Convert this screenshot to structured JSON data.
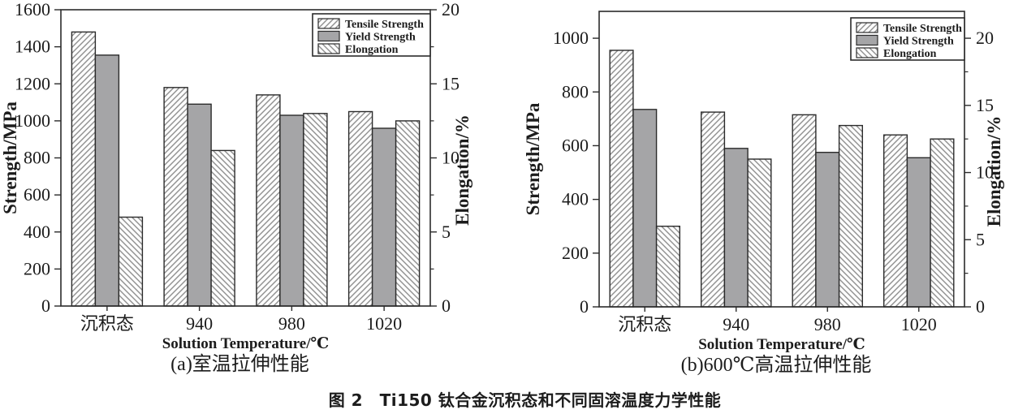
{
  "figure": {
    "main_caption": "图 2　Ti150 钛合金沉积态和不同固溶温度力学性能"
  },
  "colors": {
    "yield_fill": "#a5a5a7",
    "hatch_line": "#8f8f8f",
    "bar_stroke": "#2b2b2b",
    "axis": "#2b2b2b",
    "text": "#1c1c1c",
    "background": "#ffffff"
  },
  "chart_data": [
    {
      "type": "bar",
      "panel": "a",
      "caption": "(a)室温拉伸性能",
      "xlabel": "Solution Temperature/℃",
      "ylabel_left": "Strength/MPa",
      "ylabel_right": "Elongation/%",
      "categories": [
        "沉积态",
        "940",
        "980",
        "1020"
      ],
      "left_axis": {
        "range": [
          0,
          1600
        ],
        "ticks": [
          0,
          200,
          400,
          600,
          800,
          1000,
          1200,
          1400,
          1600
        ]
      },
      "right_axis": {
        "range": [
          0,
          20
        ],
        "ticks": [
          0,
          5,
          10,
          15,
          20
        ],
        "minor_step": 2.5
      },
      "grid": false,
      "legend": {
        "position": "top-right",
        "entries": [
          "Tensile Strength",
          "Yield Strength",
          "Elongation"
        ]
      },
      "series": [
        {
          "name": "Tensile Strength",
          "axis": "left",
          "pattern": "hatch-up",
          "values": [
            1480,
            1180,
            1140,
            1050
          ]
        },
        {
          "name": "Yield Strength",
          "axis": "left",
          "pattern": "solid",
          "values": [
            1355,
            1090,
            1030,
            960
          ]
        },
        {
          "name": "Elongation",
          "axis": "right",
          "pattern": "hatch-down",
          "values": [
            6.0,
            10.5,
            13.0,
            12.5
          ]
        }
      ]
    },
    {
      "type": "bar",
      "panel": "b",
      "caption": "(b)600℃高温拉伸性能",
      "xlabel": "Solution Temperature/℃",
      "ylabel_left": "Strength/MPa",
      "ylabel_right": "Elongation/%",
      "categories": [
        "沉积态",
        "940",
        "980",
        "1020"
      ],
      "left_axis": {
        "range": [
          0,
          1100
        ],
        "ticks": [
          0,
          200,
          400,
          600,
          800,
          1000
        ]
      },
      "right_axis": {
        "range": [
          0,
          22
        ],
        "ticks": [
          0,
          5,
          10,
          15,
          20
        ],
        "minor_step": 2.5
      },
      "grid": false,
      "legend": {
        "position": "top-right",
        "entries": [
          "Tensile Strength",
          "Yield Strength",
          "Elongation"
        ]
      },
      "series": [
        {
          "name": "Tensile Strength",
          "axis": "left",
          "pattern": "hatch-up",
          "values": [
            955,
            725,
            715,
            640
          ]
        },
        {
          "name": "Yield Strength",
          "axis": "left",
          "pattern": "solid",
          "values": [
            735,
            590,
            575,
            555
          ]
        },
        {
          "name": "Elongation",
          "axis": "right",
          "pattern": "hatch-down",
          "values": [
            6.0,
            11.0,
            13.5,
            12.5
          ]
        }
      ]
    }
  ]
}
